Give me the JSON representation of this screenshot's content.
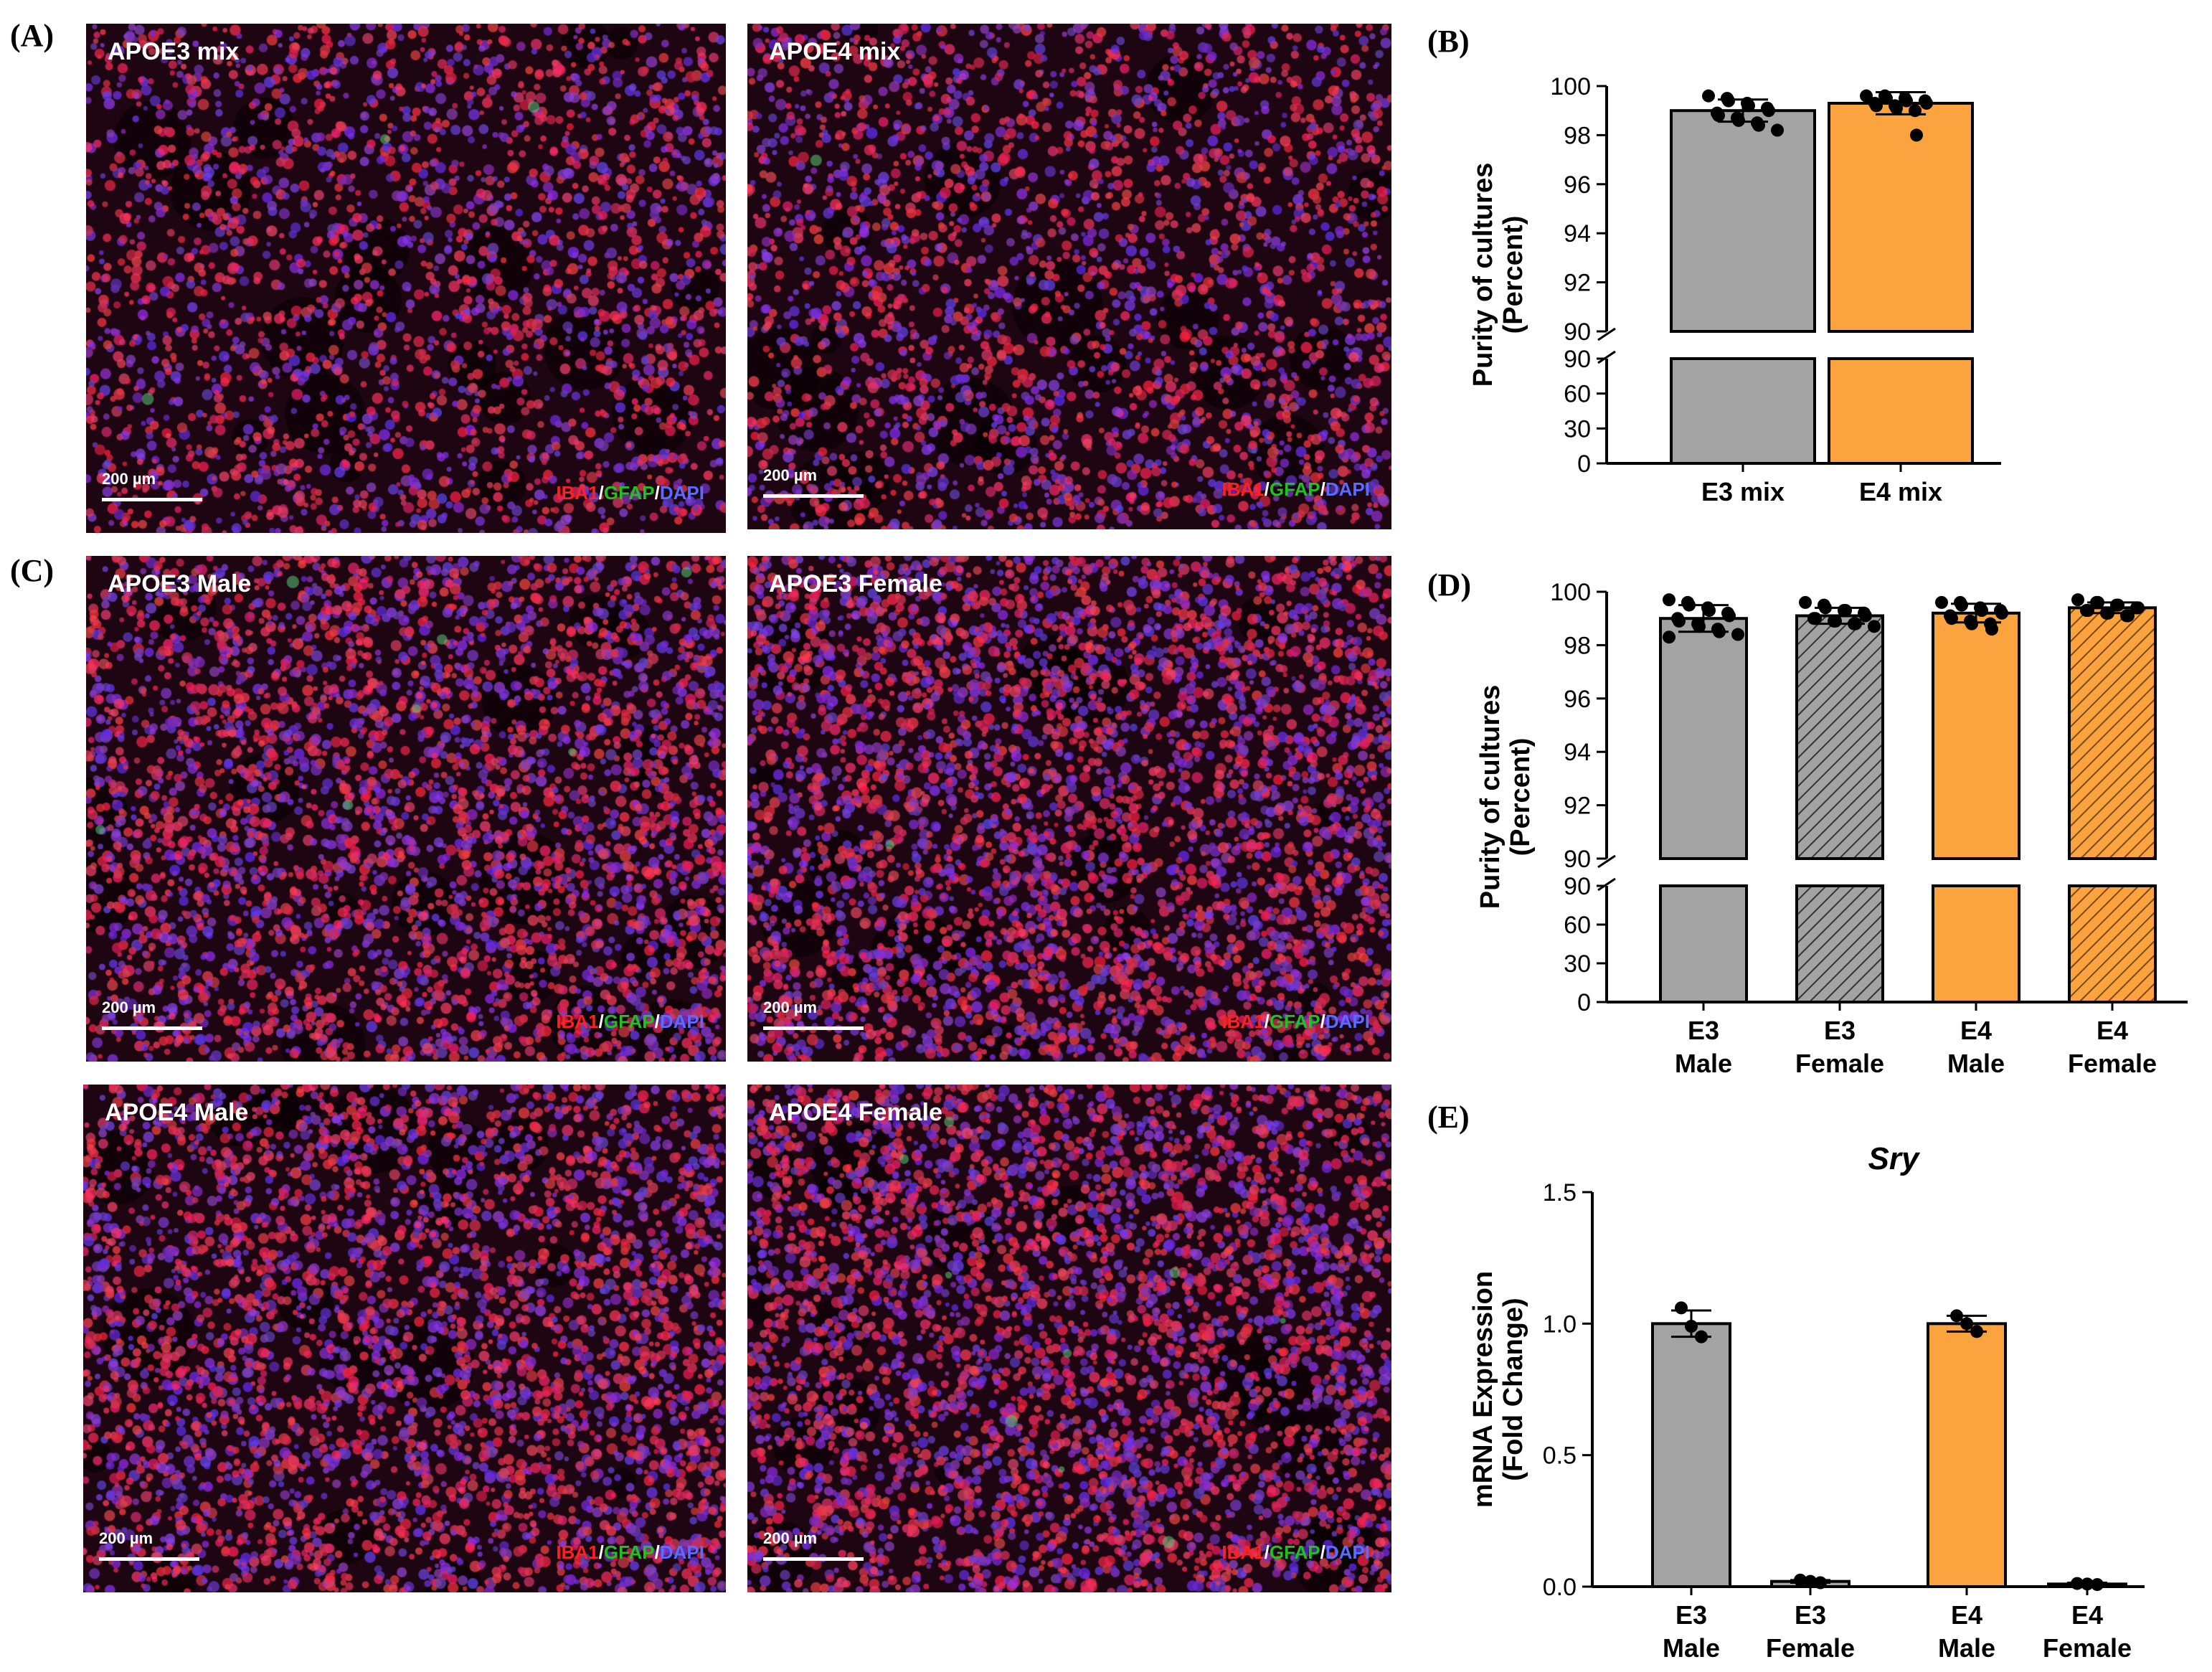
{
  "panels": {
    "A": "(A)",
    "B": "(B)",
    "C": "(C)",
    "D": "(D)",
    "E": "(E)"
  },
  "micrographs": [
    {
      "id": "apoe3-mix",
      "title": "APOE3 mix",
      "scale": "200 µm"
    },
    {
      "id": "apoe4-mix",
      "title": "APOE4 mix",
      "scale": "200 µm"
    },
    {
      "id": "apoe3-male",
      "title": "APOE3 Male",
      "scale": "200 µm"
    },
    {
      "id": "apoe3-female",
      "title": "APOE3 Female",
      "scale": "200 µm"
    },
    {
      "id": "apoe4-male",
      "title": "APOE4 Male",
      "scale": "200 µm"
    },
    {
      "id": "apoe4-female",
      "title": "APOE4 Female",
      "scale": "200 µm"
    }
  ],
  "stain_legend": {
    "iba1": "IBA1",
    "gfap": "GFAP",
    "dapi": "DAPI",
    "sep": "/"
  },
  "colors": {
    "e3": "#a3a3a3",
    "e4": "#fba33f"
  },
  "chart_data": [
    {
      "id": "B",
      "type": "bar",
      "ylabel": "Purity of cultures",
      "ylabel2": "(Percent)",
      "categories": [
        [
          "E3 mix"
        ],
        [
          "E4 mix"
        ]
      ],
      "values": [
        99.0,
        99.3
      ],
      "err": [
        0.45,
        0.45
      ],
      "color": [
        "e3",
        "e4"
      ],
      "hatch": [
        false,
        false
      ],
      "upper": {
        "range": [
          90,
          100
        ],
        "ticks": [
          "90",
          "92",
          "94",
          "96",
          "98",
          "100"
        ]
      },
      "lower": {
        "range": [
          0,
          90
        ],
        "ticks": [
          "0",
          "30",
          "60",
          "90"
        ]
      },
      "points": [
        [
          99.6,
          99.5,
          99.4,
          99.3,
          99.2,
          99.1,
          99.0,
          98.9,
          98.8,
          98.7,
          98.6,
          98.5,
          98.4,
          98.2
        ],
        [
          99.6,
          99.6,
          99.5,
          99.5,
          99.4,
          99.4,
          99.3,
          99.3,
          99.2,
          99.2,
          99.1,
          99.0,
          98.0
        ]
      ]
    },
    {
      "id": "D",
      "type": "bar",
      "ylabel": "Purity of cultures",
      "ylabel2": "(Percent)",
      "categories": [
        [
          "E3",
          "Male"
        ],
        [
          "E3",
          "Female"
        ],
        [
          "E4",
          "Male"
        ],
        [
          "E4",
          "Female"
        ]
      ],
      "values": [
        99.0,
        99.1,
        99.2,
        99.4
      ],
      "err": [
        0.5,
        0.3,
        0.35,
        0.2
      ],
      "color": [
        "e3",
        "e3",
        "e4",
        "e4"
      ],
      "hatch": [
        false,
        true,
        false,
        true
      ],
      "upper": {
        "range": [
          90,
          100
        ],
        "ticks": [
          "90",
          "92",
          "94",
          "96",
          "98",
          "100"
        ]
      },
      "lower": {
        "range": [
          0,
          90
        ],
        "ticks": [
          "0",
          "30",
          "60",
          "90"
        ]
      },
      "points": [
        [
          99.7,
          99.6,
          99.5,
          99.4,
          99.3,
          99.2,
          99.1,
          99.0,
          98.9,
          98.8,
          98.7,
          98.6,
          98.5,
          98.4,
          98.3
        ],
        [
          99.6,
          99.5,
          99.4,
          99.3,
          99.3,
          99.2,
          99.1,
          99.0,
          99.0,
          98.9,
          98.9,
          98.8,
          98.8,
          98.7
        ],
        [
          99.6,
          99.6,
          99.5,
          99.4,
          99.3,
          99.3,
          99.2,
          99.1,
          99.0,
          98.9,
          98.8,
          98.8,
          98.6
        ],
        [
          99.7,
          99.6,
          99.6,
          99.5,
          99.5,
          99.4,
          99.4,
          99.3,
          99.3,
          99.2,
          99.2,
          99.1,
          99.1
        ]
      ]
    },
    {
      "id": "E",
      "type": "bar",
      "title": "Sry",
      "ylabel": "mRNA Expression",
      "ylabel2": "(Fold Change)",
      "categories": [
        [
          "E3",
          "Male"
        ],
        [
          "E3",
          "Female"
        ],
        [
          "E4",
          "Male"
        ],
        [
          "E4",
          "Female"
        ]
      ],
      "values": [
        1.0,
        0.02,
        1.0,
        0.01
      ],
      "err": [
        0.05,
        0.005,
        0.03,
        0.005
      ],
      "color": [
        "e3",
        "e3",
        "e4",
        "e4"
      ],
      "hatch": [
        false,
        false,
        false,
        false
      ],
      "ylim": [
        0,
        1.5
      ],
      "ticks": [
        "0.0",
        "0.5",
        "1.0",
        "1.5"
      ],
      "points": [
        [
          1.06,
          0.99,
          0.95
        ],
        [
          0.025,
          0.02,
          0.015
        ],
        [
          1.03,
          1.0,
          0.97
        ],
        [
          0.012,
          0.01,
          0.008
        ]
      ]
    }
  ]
}
